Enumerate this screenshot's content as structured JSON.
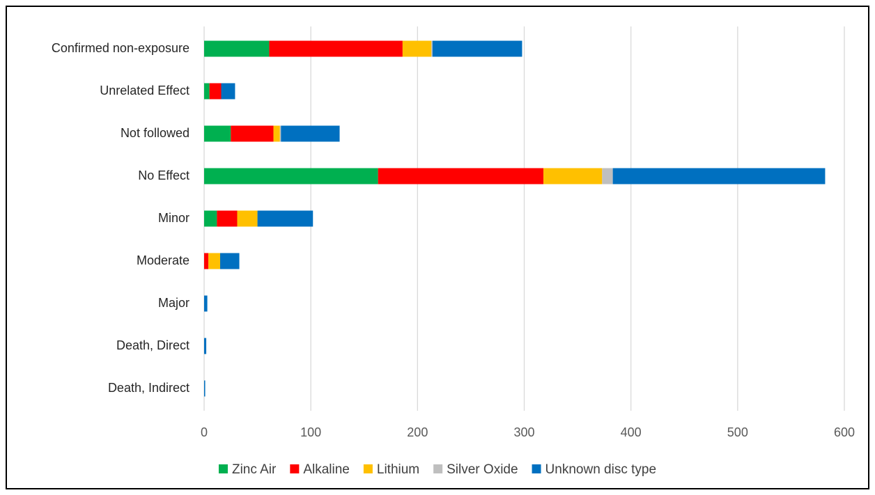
{
  "chart_data": {
    "type": "stacked_bar_horizontal",
    "categories": [
      "Confirmed non-exposure",
      "Unrelated Effect",
      "Not followed",
      "No Effect",
      "Minor",
      "Moderate",
      "Major",
      "Death, Direct",
      "Death, Indirect"
    ],
    "series": [
      {
        "name": "Zinc Air",
        "color": "#00b050",
        "values": [
          61,
          5,
          25,
          163,
          12,
          0,
          0,
          0,
          0
        ]
      },
      {
        "name": "Alkaline",
        "color": "#ff0000",
        "values": [
          125,
          11,
          40,
          155,
          19,
          4,
          0,
          0,
          0
        ]
      },
      {
        "name": "Lithium",
        "color": "#ffc000",
        "values": [
          27,
          0,
          6,
          55,
          19,
          11,
          0,
          0,
          0
        ]
      },
      {
        "name": "Silver Oxide",
        "color": "#bfbfbf",
        "values": [
          1,
          0,
          1,
          10,
          0,
          0,
          0,
          0,
          0
        ]
      },
      {
        "name": "Unknown disc type",
        "color": "#0070c0",
        "values": [
          84,
          13,
          55,
          199,
          52,
          18,
          3,
          2,
          1
        ]
      }
    ],
    "xlim": [
      0,
      600
    ],
    "xticks": [
      0,
      100,
      200,
      300,
      400,
      500,
      600
    ],
    "grid": true,
    "legend": "bottom"
  }
}
